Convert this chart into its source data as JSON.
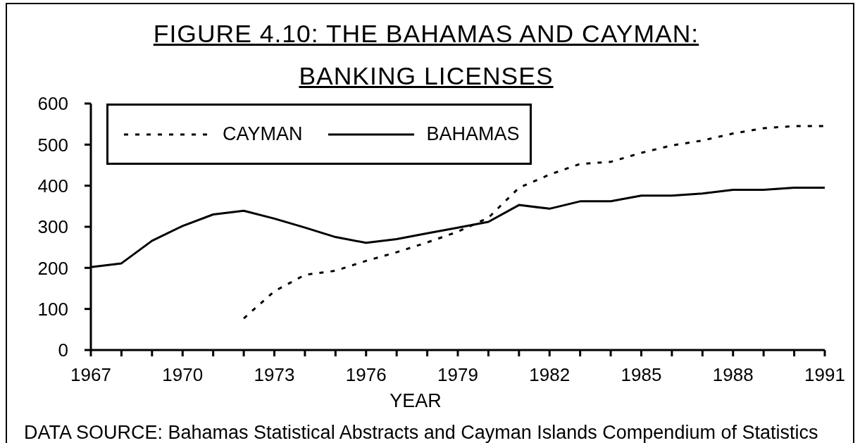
{
  "chart_data": {
    "type": "line",
    "title": "FIGURE 4.10: THE BAHAMAS AND CAYMAN: BANKING LICENSES",
    "xlabel": "YEAR",
    "annotations": [
      "DATA SOURCE: Bahamas Statistical Abstracts and Cayman Islands Compendium of Statistics"
    ],
    "x": [
      1967,
      1968,
      1969,
      1970,
      1971,
      1972,
      1973,
      1974,
      1975,
      1976,
      1977,
      1978,
      1979,
      1980,
      1981,
      1982,
      1983,
      1984,
      1985,
      1986,
      1987,
      1988,
      1989,
      1990,
      1991
    ],
    "series": [
      {
        "name": "CAYMAN",
        "color": "#000000",
        "line_style": "dashed",
        "values": [
          null,
          null,
          null,
          null,
          null,
          77,
          143,
          183,
          193,
          217,
          238,
          262,
          288,
          322,
          395,
          427,
          453,
          458,
          480,
          498,
          510,
          527,
          540,
          545,
          545
        ]
      },
      {
        "name": "BAHAMAS",
        "color": "#000000",
        "line_style": "solid",
        "values": [
          202,
          211,
          266,
          302,
          330,
          339,
          320,
          298,
          275,
          261,
          270,
          284,
          298,
          312,
          353,
          344,
          362,
          362,
          376,
          376,
          381,
          390,
          390,
          395,
          395
        ]
      }
    ],
    "xlim": [
      1967,
      1991
    ],
    "xticks": [
      1967,
      {
        "value": 1968,
        "label": null
      },
      {
        "value": 1969,
        "label": null
      },
      1970,
      {
        "value": 1971,
        "label": null
      },
      {
        "value": 1972,
        "label": null
      },
      1973,
      {
        "value": 1974,
        "label": null
      },
      {
        "value": 1975,
        "label": null
      },
      1976,
      {
        "value": 1977,
        "label": null
      },
      {
        "value": 1978,
        "label": null
      },
      1979,
      {
        "value": 1980,
        "label": null
      },
      {
        "value": 1981,
        "label": null
      },
      1982,
      {
        "value": 1983,
        "label": null
      },
      {
        "value": 1984,
        "label": null
      },
      1985,
      {
        "value": 1986,
        "label": null
      },
      {
        "value": 1987,
        "label": null
      },
      1988,
      {
        "value": 1989,
        "label": null
      },
      {
        "value": 1990,
        "label": null
      },
      1991
    ],
    "ylim": [
      0,
      600
    ],
    "yticks": [
      0,
      100,
      200,
      300,
      400,
      500,
      600
    ],
    "legend": "top left"
  }
}
